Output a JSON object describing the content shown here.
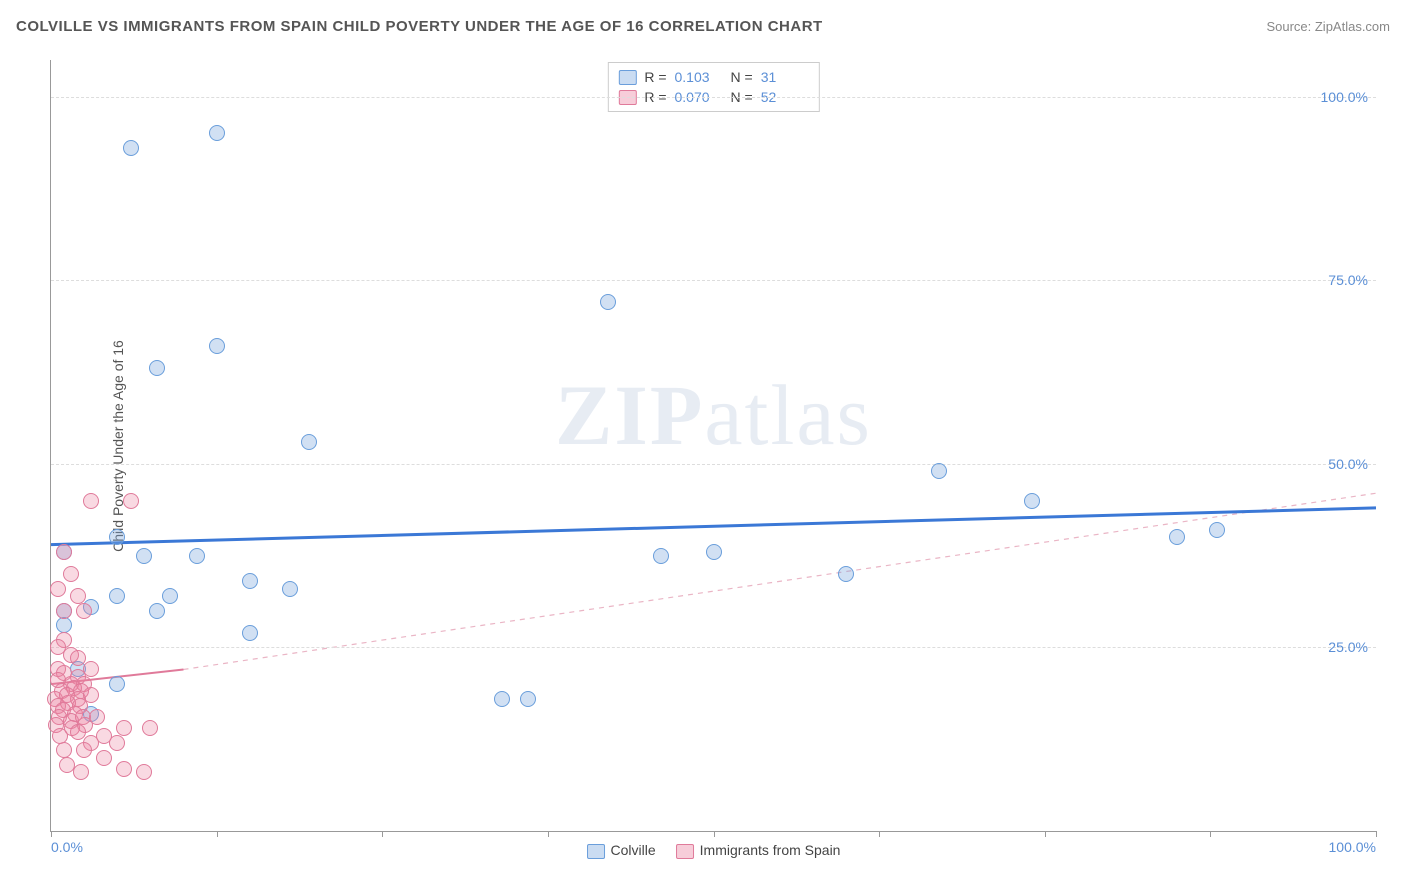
{
  "header": {
    "title": "COLVILLE VS IMMIGRANTS FROM SPAIN CHILD POVERTY UNDER THE AGE OF 16 CORRELATION CHART",
    "source_prefix": "Source: ",
    "source": "ZipAtlas.com"
  },
  "y_axis_label": "Child Poverty Under the Age of 16",
  "watermark": {
    "bold": "ZIP",
    "rest": "atlas"
  },
  "chart": {
    "type": "scatter",
    "xlim": [
      0,
      100
    ],
    "ylim": [
      0,
      105
    ],
    "y_ticks": [
      25,
      50,
      75,
      100
    ],
    "y_tick_labels": [
      "25.0%",
      "50.0%",
      "75.0%",
      "100.0%"
    ],
    "x_ticks": [
      0,
      12.5,
      25,
      37.5,
      50,
      62.5,
      75,
      87.5,
      100
    ],
    "x_tick_labels": {
      "0": "0.0%",
      "100": "100.0%"
    },
    "grid_color": "#dddddd",
    "axis_color": "#999999",
    "background_color": "#ffffff",
    "series": [
      {
        "name": "Colville",
        "color_fill": "rgba(123,167,222,0.35)",
        "color_stroke": "#6a9edb",
        "marker_size": 16,
        "R": "0.103",
        "N": "31",
        "trend": {
          "x1": 0,
          "y1": 39,
          "x2": 100,
          "y2": 44,
          "stroke": "#3b78d6",
          "width": 3,
          "dash": "none"
        },
        "points": [
          [
            6,
            93
          ],
          [
            12.5,
            95
          ],
          [
            8,
            63
          ],
          [
            12.5,
            66
          ],
          [
            19.5,
            53
          ],
          [
            42,
            72
          ],
          [
            5,
            40
          ],
          [
            7,
            37.5
          ],
          [
            8,
            30
          ],
          [
            9,
            32
          ],
          [
            5,
            32
          ],
          [
            1,
            38
          ],
          [
            11,
            37.5
          ],
          [
            1,
            30
          ],
          [
            3,
            30.5
          ],
          [
            15,
            34
          ],
          [
            18,
            33
          ],
          [
            15,
            27
          ],
          [
            5,
            20
          ],
          [
            2,
            22
          ],
          [
            34,
            18
          ],
          [
            36,
            18
          ],
          [
            46,
            37.5
          ],
          [
            50,
            38
          ],
          [
            60,
            35
          ],
          [
            1,
            28
          ],
          [
            67,
            49
          ],
          [
            74,
            45
          ],
          [
            85,
            40
          ],
          [
            88,
            41
          ],
          [
            3,
            16
          ]
        ]
      },
      {
        "name": "Immigrants from Spain",
        "color_fill": "rgba(235,130,160,0.3)",
        "color_stroke": "#e07a9a",
        "marker_size": 16,
        "R": "0.070",
        "N": "52",
        "trend_solid": {
          "x1": 0,
          "y1": 20,
          "x2": 10,
          "y2": 22,
          "stroke": "#e07a9a",
          "width": 2
        },
        "trend_dashed": {
          "x1": 10,
          "y1": 22,
          "x2": 100,
          "y2": 46,
          "stroke": "#eab5c5",
          "width": 1.2,
          "dash": "5,5"
        },
        "points": [
          [
            1,
            38
          ],
          [
            1.5,
            35
          ],
          [
            0.5,
            33
          ],
          [
            2,
            32
          ],
          [
            1,
            30
          ],
          [
            2.5,
            30
          ],
          [
            3,
            45
          ],
          [
            6,
            45
          ],
          [
            1,
            26
          ],
          [
            0.5,
            25
          ],
          [
            1.5,
            24
          ],
          [
            2,
            23.5
          ],
          [
            0.5,
            22
          ],
          [
            1,
            21.5
          ],
          [
            2,
            21
          ],
          [
            3,
            22
          ],
          [
            0.5,
            20.5
          ],
          [
            1.5,
            20
          ],
          [
            2.5,
            20
          ],
          [
            0.8,
            19
          ],
          [
            1.7,
            19.5
          ],
          [
            2.3,
            19
          ],
          [
            0.3,
            18
          ],
          [
            1.2,
            18.5
          ],
          [
            2,
            18
          ],
          [
            3,
            18.5
          ],
          [
            0.5,
            17
          ],
          [
            1.3,
            17.5
          ],
          [
            2.2,
            17
          ],
          [
            0.9,
            16.5
          ],
          [
            1.8,
            16
          ],
          [
            0.6,
            15.5
          ],
          [
            1.5,
            15
          ],
          [
            2.4,
            15.5
          ],
          [
            0.4,
            14.5
          ],
          [
            1.6,
            14
          ],
          [
            2.6,
            14.5
          ],
          [
            3.5,
            15.5
          ],
          [
            0.7,
            13
          ],
          [
            2,
            13.5
          ],
          [
            4,
            13
          ],
          [
            5.5,
            14
          ],
          [
            7.5,
            14
          ],
          [
            3,
            12
          ],
          [
            5,
            12
          ],
          [
            1,
            11
          ],
          [
            2.5,
            11
          ],
          [
            4,
            10
          ],
          [
            1.2,
            9
          ],
          [
            2.3,
            8
          ],
          [
            5.5,
            8.5
          ],
          [
            7,
            8
          ]
        ]
      }
    ]
  },
  "legend_bottom": {
    "items": [
      {
        "swatch": "blue",
        "label": "Colville"
      },
      {
        "swatch": "pink",
        "label": "Immigrants from Spain"
      }
    ]
  }
}
